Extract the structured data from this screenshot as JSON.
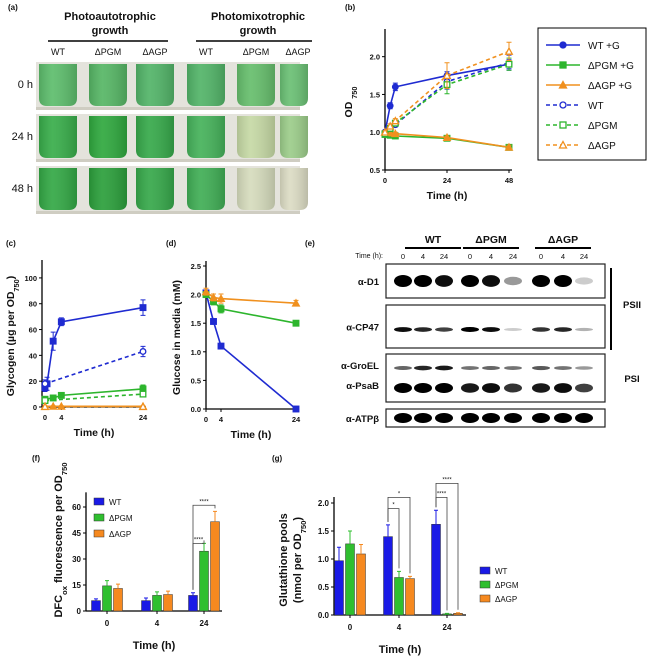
{
  "panel_labels": [
    "(a)",
    "(b)",
    "(c)",
    "(d)",
    "(e)",
    "(f)",
    "(g)"
  ],
  "panel_a": {
    "group_headers": [
      [
        "Photoautotrophic",
        "growth"
      ],
      [
        "Photomixotrophic",
        "growth"
      ]
    ],
    "strains": [
      "WT",
      "ΔPGM",
      "ΔAGP",
      "WT",
      "ΔPGM",
      "ΔAGP"
    ],
    "rows": [
      "0 h",
      "24 h",
      "48 h"
    ],
    "tube_colors": [
      [
        "#5dbd6c",
        "#56b665",
        "#52b468",
        "#52b468",
        "#66be6c",
        "#6ac074"
      ],
      [
        "#38ad4a",
        "#2fa83e",
        "#36a94a",
        "#45b25a",
        "#c6d9a5",
        "#9ccd8a"
      ],
      [
        "#33a845",
        "#2b9f3b",
        "#36a84a",
        "#40ae55",
        "#d6dcbd",
        "#dcdcc4"
      ]
    ]
  },
  "panel_e": {
    "time_label": "Time (h):",
    "groups": [
      "WT",
      "ΔPGM",
      "ΔAGP"
    ],
    "lanes": [
      "0",
      "4",
      "24",
      "0",
      "4",
      "24",
      "0",
      "4",
      "24"
    ],
    "blots": [
      {
        "labels": [
          "α-D1"
        ],
        "bands": [
          [
            1,
            1,
            0.95,
            1,
            0.95,
            0.4,
            1,
            1,
            0.2
          ]
        ]
      },
      {
        "labels": [
          "α-CP47"
        ],
        "bands": [
          [
            0.95,
            0.85,
            0.75,
            1,
            0.95,
            0.2,
            0.8,
            0.85,
            0.3
          ]
        ]
      },
      {
        "labels": [
          "α-GroEL",
          "α-PsaB"
        ],
        "bands": [
          [
            0.6,
            0.85,
            0.9,
            0.55,
            0.6,
            0.55,
            0.65,
            0.55,
            0.4
          ],
          [
            1,
            1,
            1,
            0.9,
            0.95,
            0.8,
            0.9,
            0.95,
            0.75
          ]
        ]
      },
      {
        "labels": [
          "α-ATPβ"
        ],
        "bands": [
          [
            1,
            1,
            1,
            1,
            1,
            1,
            1,
            1,
            1
          ]
        ]
      }
    ],
    "complex_labels": [
      "PSII",
      "PSI"
    ]
  },
  "chart_data": [
    {
      "panel": "(b)",
      "type": "line",
      "xlabel": "Time (h)",
      "ylabel": [
        {
          "t": "OD "
        },
        {
          "t": "750",
          "sub": true
        }
      ],
      "xlim": [
        0,
        48
      ],
      "ylim": [
        0.5,
        2.3
      ],
      "xticks": [
        0,
        24,
        48
      ],
      "yticks": [
        0.5,
        1.0,
        1.5,
        2.0
      ],
      "ytick_labels": [
        "0.5",
        "1.0",
        "1.5",
        "2.0"
      ],
      "legend": "right-outside",
      "series": [
        {
          "name": "WT +G",
          "color": "#1f2bd1",
          "dash": false,
          "marker": "circle",
          "filled": true,
          "x": [
            0,
            2,
            4,
            24,
            48
          ],
          "y": [
            1.0,
            1.35,
            1.6,
            1.75,
            1.9
          ],
          "err": [
            0.02,
            0.04,
            0.05,
            0.05,
            0.06
          ]
        },
        {
          "name": "ΔPGM +G",
          "color": "#2db52d",
          "dash": false,
          "marker": "square",
          "filled": true,
          "x": [
            0,
            2,
            4,
            24,
            48
          ],
          "y": [
            0.97,
            0.96,
            0.95,
            0.92,
            0.8
          ],
          "err": [
            0.02,
            0.02,
            0.02,
            0.02,
            0.03
          ]
        },
        {
          "name": "ΔAGP +G",
          "color": "#f0901e",
          "dash": false,
          "marker": "triangle",
          "filled": true,
          "x": [
            0,
            2,
            4,
            24,
            48
          ],
          "y": [
            1.0,
            0.99,
            0.98,
            0.93,
            0.8
          ],
          "err": [
            0.02,
            0.02,
            0.02,
            0.02,
            0.03
          ]
        },
        {
          "name": "WT",
          "color": "#1f2bd1",
          "dash": true,
          "marker": "circle",
          "filled": false,
          "x": [
            0,
            2,
            4,
            24,
            48
          ],
          "y": [
            1.0,
            1.05,
            1.1,
            1.67,
            1.92
          ],
          "err": [
            0.02,
            0.03,
            0.03,
            0.1,
            0.1
          ]
        },
        {
          "name": "ΔPGM",
          "color": "#2db52d",
          "dash": true,
          "marker": "square",
          "filled": false,
          "x": [
            0,
            2,
            4,
            24,
            48
          ],
          "y": [
            0.98,
            1.05,
            1.12,
            1.63,
            1.9
          ],
          "err": [
            0.02,
            0.03,
            0.03,
            0.12,
            0.08
          ]
        },
        {
          "name": "ΔAGP",
          "color": "#f0901e",
          "dash": true,
          "marker": "triangle",
          "filled": false,
          "x": [
            0,
            2,
            4,
            24,
            48
          ],
          "y": [
            1.0,
            1.08,
            1.15,
            1.75,
            2.07
          ],
          "err": [
            0.02,
            0.03,
            0.03,
            0.17,
            0.12
          ]
        }
      ]
    },
    {
      "panel": "(c)",
      "type": "line",
      "xlabel": "Time (h)",
      "ylabel": [
        {
          "t": "Glycogen (µg per OD"
        },
        {
          "t": "750",
          "sub": true
        },
        {
          "t": ")"
        }
      ],
      "xlim": [
        0,
        24
      ],
      "ylim": [
        0,
        110
      ],
      "xticks": [
        0,
        4,
        24
      ],
      "yticks": [
        0,
        20,
        40,
        60,
        80,
        100
      ],
      "ytick_labels": [
        "0",
        "20",
        "40",
        "60",
        "80",
        "100"
      ],
      "series": [
        {
          "name": "WT +G",
          "color": "#1f2bd1",
          "dash": false,
          "marker": "square",
          "filled": true,
          "x": [
            0,
            0.5,
            2,
            4,
            24
          ],
          "y": [
            15,
            18,
            51,
            66,
            77
          ],
          "err": [
            3,
            5,
            7,
            3,
            6
          ]
        },
        {
          "name": "WT",
          "color": "#1f2bd1",
          "dash": true,
          "marker": "circle",
          "filled": false,
          "x": [
            0,
            24
          ],
          "y": [
            18,
            43
          ],
          "err": [
            3,
            4
          ]
        },
        {
          "name": "ΔPGM +G",
          "color": "#2db52d",
          "dash": false,
          "marker": "square",
          "filled": true,
          "x": [
            0,
            2,
            4,
            24
          ],
          "y": [
            6,
            7,
            9,
            14
          ],
          "err": [
            1,
            1,
            2,
            3
          ]
        },
        {
          "name": "ΔPGM",
          "color": "#2db52d",
          "dash": true,
          "marker": "square",
          "filled": false,
          "x": [
            0,
            24
          ],
          "y": [
            5,
            10
          ],
          "err": [
            1,
            2
          ]
        },
        {
          "name": "ΔAGP +G",
          "color": "#f0901e",
          "dash": false,
          "marker": "triangle",
          "filled": true,
          "x": [
            0,
            2,
            4,
            24
          ],
          "y": [
            0.5,
            0.5,
            0.5,
            0.5
          ],
          "err": [
            0.5,
            0.5,
            0.5,
            0.5
          ]
        },
        {
          "name": "ΔAGP",
          "color": "#f0901e",
          "dash": true,
          "marker": "triangle",
          "filled": false,
          "x": [
            0,
            24
          ],
          "y": [
            0.3,
            0.3
          ],
          "err": [
            0.5,
            0.5
          ]
        }
      ]
    },
    {
      "panel": "(d)",
      "type": "line",
      "xlabel": "Time (h)",
      "ylabel": [
        {
          "t": "Glucose in media (mM)"
        }
      ],
      "xlim": [
        0,
        24
      ],
      "ylim": [
        0,
        2.5
      ],
      "xticks": [
        0,
        4,
        24
      ],
      "yticks": [
        0,
        0.5,
        1.0,
        1.5,
        2.0,
        2.5
      ],
      "ytick_labels": [
        "0.0",
        "0.5",
        "1.0",
        "1.5",
        "2.0",
        "2.5"
      ],
      "series": [
        {
          "name": "WT +G",
          "color": "#1f2bd1",
          "dash": false,
          "marker": "square",
          "filled": true,
          "x": [
            0,
            2,
            4,
            24
          ],
          "y": [
            2.03,
            1.53,
            1.1,
            0.0
          ],
          "err": [
            0.05,
            0.04,
            0.04,
            0.02
          ]
        },
        {
          "name": "ΔPGM +G",
          "color": "#2db52d",
          "dash": false,
          "marker": "square",
          "filled": true,
          "x": [
            0,
            2,
            4,
            24
          ],
          "y": [
            2.0,
            1.88,
            1.75,
            1.5
          ],
          "err": [
            0.05,
            0.06,
            0.07,
            0.04
          ]
        },
        {
          "name": "ΔAGP +G",
          "color": "#f0901e",
          "dash": false,
          "marker": "triangle",
          "filled": true,
          "x": [
            0,
            2,
            4,
            24
          ],
          "y": [
            2.05,
            1.95,
            1.93,
            1.85
          ],
          "err": [
            0.06,
            0.06,
            0.08,
            0.05
          ]
        }
      ]
    },
    {
      "panel": "(f)",
      "type": "bar",
      "xlabel": "Time (h)",
      "ylabel": [
        {
          "t": "DFC"
        },
        {
          "t": "ox",
          "sub": true
        },
        {
          "t": " fluorescence per OD"
        },
        {
          "t": "750",
          "sub": true
        }
      ],
      "categories": [
        "0",
        "4",
        "24"
      ],
      "ylim": [
        0,
        65
      ],
      "yticks": [
        0,
        15,
        30,
        45,
        60
      ],
      "ytick_labels": [
        "0",
        "15",
        "30",
        "45",
        "60"
      ],
      "legend": "top-left",
      "series": [
        {
          "name": "WT",
          "color": "#1a1ae6",
          "values": [
            6,
            6,
            9
          ],
          "err": [
            1,
            1.5,
            1.5
          ]
        },
        {
          "name": "ΔPGM",
          "color": "#2fbf2f",
          "values": [
            14.5,
            9,
            34.5
          ],
          "err": [
            3,
            2,
            4.5
          ]
        },
        {
          "name": "ΔAGP",
          "color": "#f6891f",
          "values": [
            13,
            9.5,
            51.5
          ],
          "err": [
            2.5,
            2,
            6
          ]
        }
      ],
      "significance": [
        {
          "category": 2,
          "from": 0,
          "to": 1,
          "level": 39,
          "label": "****"
        },
        {
          "category": 2,
          "from": 0,
          "to": 2,
          "level": 61,
          "label": "****"
        }
      ]
    },
    {
      "panel": "(g)",
      "type": "bar",
      "xlabel": "Time (h)",
      "ylabel_lines": [
        [
          {
            "t": "Glutathione pools"
          }
        ],
        [
          {
            "t": "(nmol per OD"
          },
          {
            "t": "750",
            "sub": true
          },
          {
            "t": ")"
          }
        ]
      ],
      "categories": [
        "0",
        "4",
        "24"
      ],
      "ylim": [
        0,
        2.0
      ],
      "yticks": [
        0,
        0.5,
        1.0,
        1.5,
        2.0
      ],
      "ytick_labels": [
        "0.0",
        "0.5",
        "1.0",
        "1.5",
        "2.0"
      ],
      "legend": "right-outside",
      "series": [
        {
          "name": "WT",
          "color": "#1a1ae6",
          "values": [
            0.97,
            1.4,
            1.62
          ],
          "err": [
            0.24,
            0.21,
            0.25
          ]
        },
        {
          "name": "ΔPGM",
          "color": "#2fbf2f",
          "values": [
            1.27,
            0.67,
            0.02
          ],
          "err": [
            0.23,
            0.11,
            0.01
          ]
        },
        {
          "name": "ΔAGP",
          "color": "#f6891f",
          "values": [
            1.09,
            0.65,
            0.03
          ],
          "err": [
            0.17,
            0.04,
            0.01
          ]
        }
      ],
      "significance": [
        {
          "category": 1,
          "from": 0,
          "to": 1,
          "level": 1.9,
          "label": "*"
        },
        {
          "category": 1,
          "from": 0,
          "to": 2,
          "level": 2.1,
          "label": "*"
        },
        {
          "category": 2,
          "from": 0,
          "to": 1,
          "level": 2.1,
          "label": "****"
        },
        {
          "category": 2,
          "from": 0,
          "to": 2,
          "level": 2.35,
          "label": "****"
        }
      ]
    }
  ]
}
